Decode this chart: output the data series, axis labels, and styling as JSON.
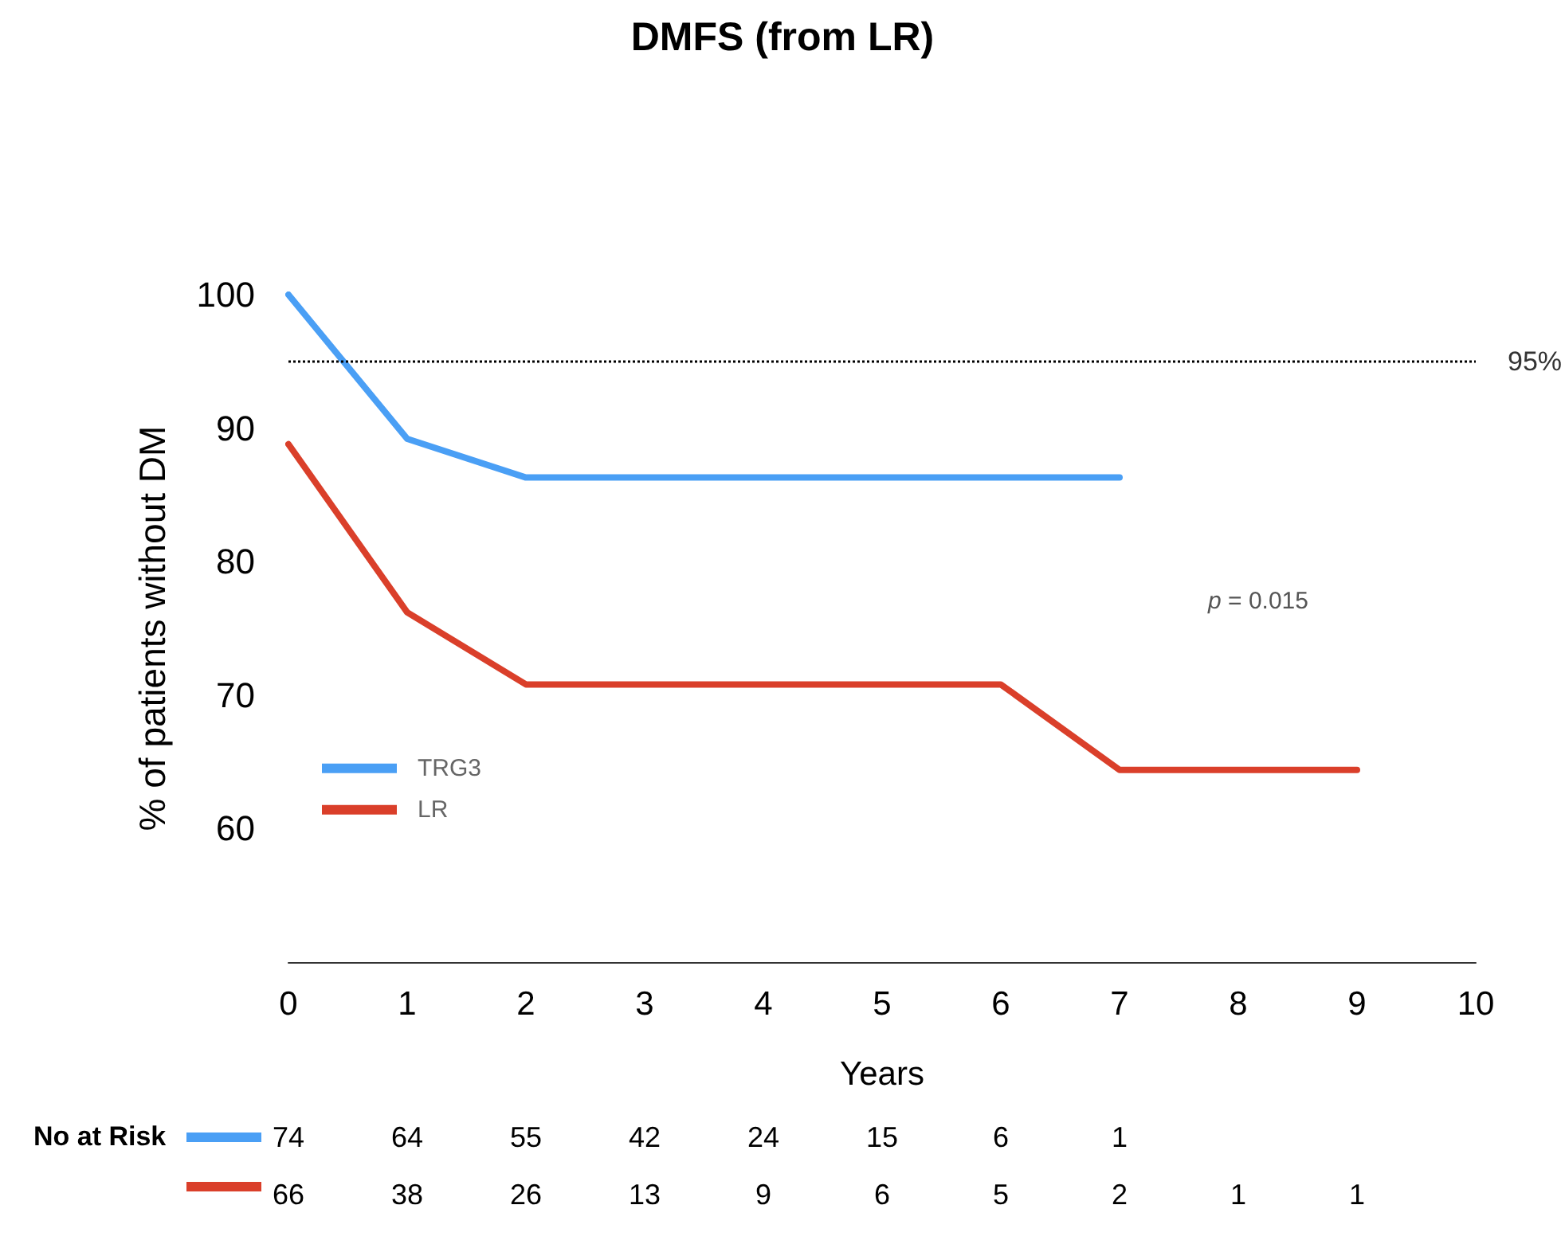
{
  "chart_data": {
    "type": "line",
    "title": "DMFS (from LR)",
    "xlabel": "Years",
    "ylabel": "% of patients without DM",
    "xlim": [
      0,
      10
    ],
    "xticks": [
      0,
      1,
      2,
      3,
      4,
      5,
      6,
      7,
      8,
      9,
      10
    ],
    "ylim": [
      50,
      100
    ],
    "yticks": [
      60,
      70,
      80,
      90,
      100
    ],
    "series": [
      {
        "name": "TRG3",
        "color": "#4a9ff5",
        "x": [
          0,
          1,
          2,
          7
        ],
        "values": [
          100,
          89.2,
          86.3,
          86.3
        ]
      },
      {
        "name": "LR",
        "color": "#da3f2a",
        "x": [
          0,
          1,
          2,
          6,
          7,
          9
        ],
        "values": [
          88.8,
          76.2,
          70.8,
          70.8,
          64.4,
          64.4
        ]
      }
    ],
    "ref_lines": [
      {
        "axis": "y",
        "value": 95,
        "label": "95%",
        "color": "#000000",
        "line_style": "dotted"
      }
    ],
    "annotations": [
      "p = 0.015",
      "No at Risk",
      "74",
      "64",
      "55",
      "42",
      "24",
      "15",
      "6",
      "1",
      "66",
      "38",
      "26",
      "13",
      "9",
      "6",
      "5",
      "2",
      "1",
      "1"
    ],
    "legend": "left",
    "grid": false,
    "marker": "none",
    "line_style": "solid"
  }
}
